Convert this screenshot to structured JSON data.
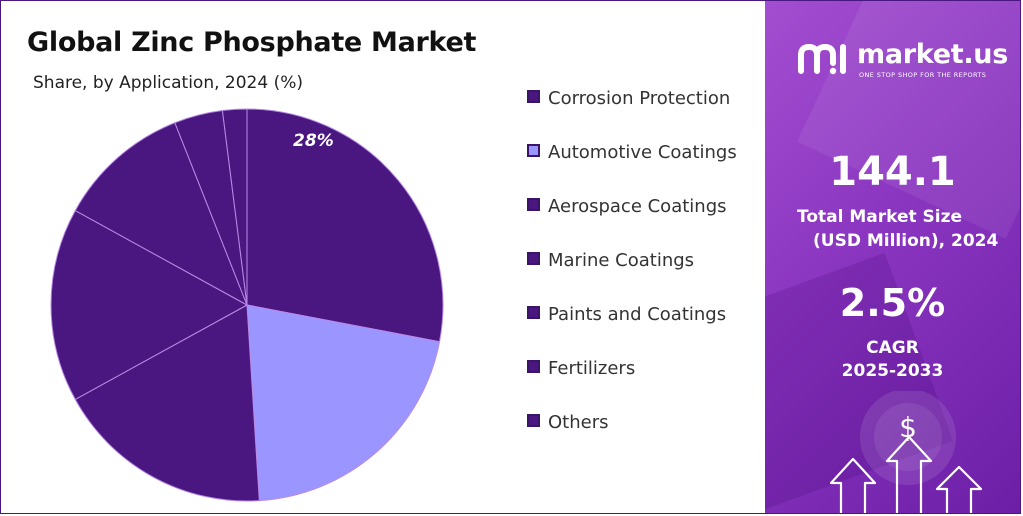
{
  "title": "Global Zinc Phosphate Market",
  "subtitle": "Share, by Application, 2024 (%)",
  "chart_data": {
    "type": "pie",
    "title": "Global Zinc Phosphate Market",
    "subtitle": "Share, by Application, 2024 (%)",
    "categories": [
      "Corrosion Protection",
      "Automotive Coatings",
      "Aerospace Coatings",
      "Marine Coatings",
      "Paints and Coatings",
      "Fertilizers",
      "Others"
    ],
    "values": [
      28,
      21,
      18,
      16,
      11,
      4,
      2
    ],
    "data_labels": [
      "28%",
      "",
      "",
      "",
      "",
      "",
      ""
    ],
    "colors": [
      "#4a1780",
      "#9b96ff",
      "#4a1780",
      "#4a1780",
      "#4a1780",
      "#4a1780",
      "#4a1780"
    ],
    "legend_position": "right"
  },
  "legend": [
    {
      "label": "Corrosion Protection",
      "color": "#4a1780"
    },
    {
      "label": "Automotive Coatings",
      "color": "#9b96ff"
    },
    {
      "label": "Aerospace Coatings",
      "color": "#4a1780"
    },
    {
      "label": "Marine Coatings",
      "color": "#4a1780"
    },
    {
      "label": "Paints and Coatings",
      "color": "#4a1780"
    },
    {
      "label": "Fertilizers",
      "color": "#4a1780"
    },
    {
      "label": "Others",
      "color": "#4a1780"
    }
  ],
  "brand": {
    "name": "market.us",
    "tagline": "ONE STOP SHOP FOR THE REPORTS",
    "icon": "market-us-logo-icon"
  },
  "stats": {
    "market_size_value": "144.1",
    "market_size_label_line1": "Total Market Size",
    "market_size_label_line2": "(USD Million), 2024",
    "cagr_value": "2.5%",
    "cagr_label_line1": "CAGR",
    "cagr_label_line2": "2025-2033"
  },
  "decoration": {
    "currency_symbol": "$",
    "icon": "growth-arrows-icon"
  },
  "colors": {
    "slice_dark": "#4a1780",
    "slice_light": "#9b96ff",
    "panel_purple": "#8a35c0"
  }
}
